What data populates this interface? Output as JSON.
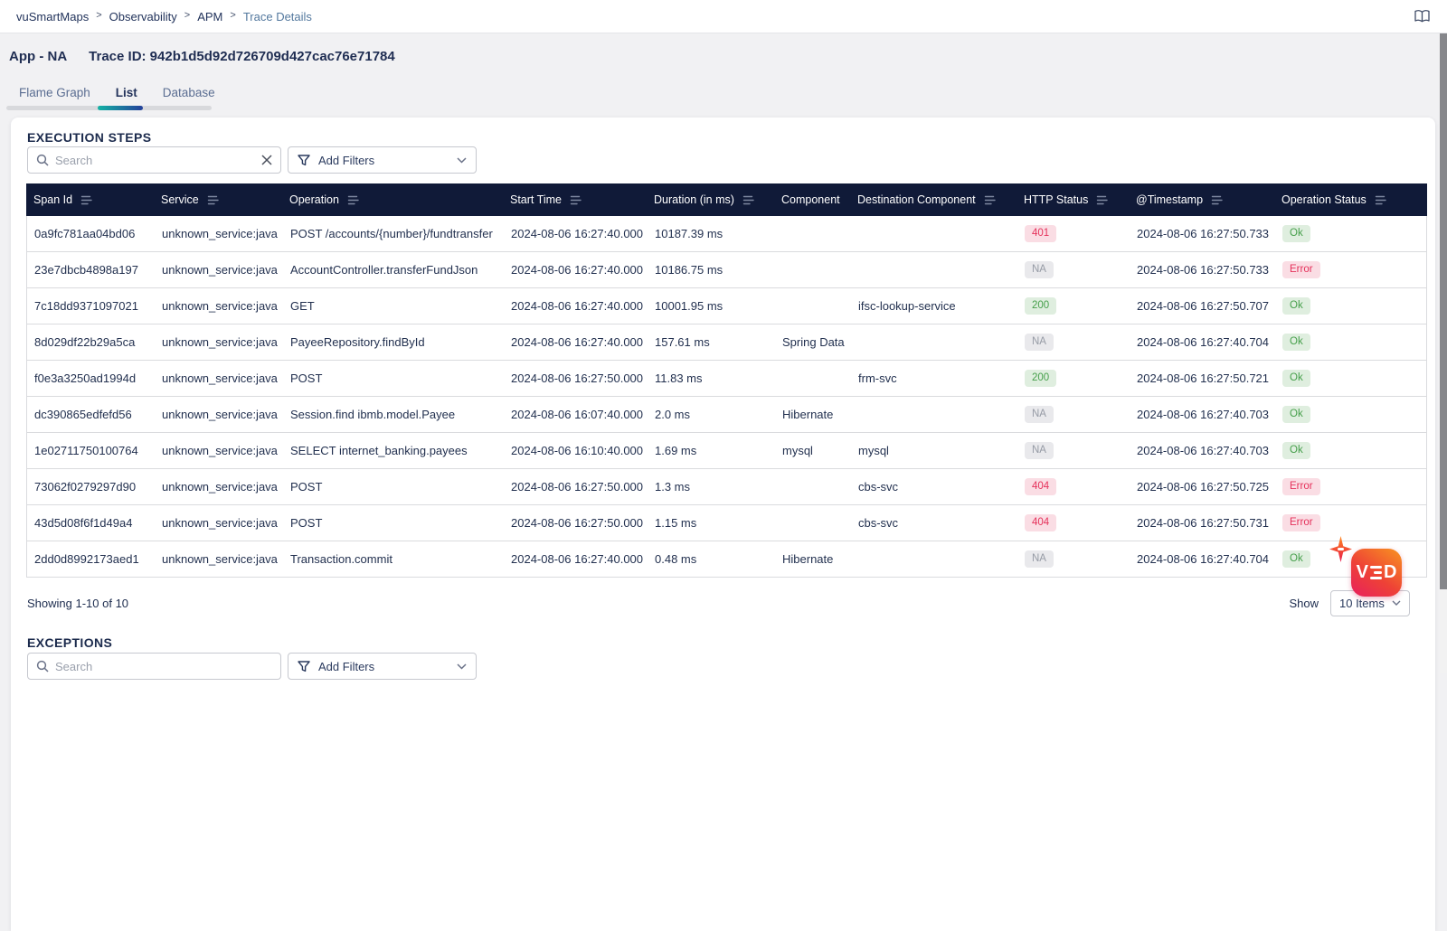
{
  "topbar": {
    "breadcrumb": [
      {
        "label": "vuSmartMaps",
        "current": false
      },
      {
        "label": "Observability",
        "current": false
      },
      {
        "label": "APM",
        "current": false
      },
      {
        "label": "Trace Details",
        "current": true
      }
    ],
    "separator": ">"
  },
  "header": {
    "app_label": "App - NA",
    "trace_id_label": "Trace ID: 942b1d5d92d726709d427cac76e71784"
  },
  "tabs": [
    {
      "label": "Flame Graph",
      "active": false
    },
    {
      "label": "List",
      "active": true
    },
    {
      "label": "Database",
      "active": false
    }
  ],
  "execution_steps": {
    "heading": "EXECUTION STEPS",
    "search_placeholder": "Search",
    "add_filters_label": "Add Filters",
    "table": {
      "columns": [
        {
          "label": "Span Id",
          "filter_icon": true
        },
        {
          "label": "Service",
          "filter_icon": true
        },
        {
          "label": "Operation",
          "filter_icon": true
        },
        {
          "label": "Start Time",
          "filter_icon": true
        },
        {
          "label": "Duration (in ms)",
          "filter_icon": true
        },
        {
          "label": "Component",
          "filter_icon": false
        },
        {
          "label": "Destination Component",
          "filter_icon": true
        },
        {
          "label": "HTTP Status",
          "filter_icon": true
        },
        {
          "label": "@Timestamp",
          "filter_icon": true
        },
        {
          "label": "Operation Status",
          "filter_icon": true
        }
      ],
      "rows": [
        {
          "span_id": "0a9fc781aa04bd06",
          "service": "unknown_service:java",
          "operation": "POST /accounts/{number}/fundtransfer",
          "start_time": "2024-08-06 16:27:40.000",
          "duration": "10187.39 ms",
          "component": "",
          "destination_component": "",
          "http_status": {
            "text": "401",
            "type": "danger"
          },
          "timestamp": "2024-08-06 16:27:50.733",
          "operation_status": {
            "text": "Ok",
            "type": "success"
          }
        },
        {
          "span_id": "23e7dbcb4898a197",
          "service": "unknown_service:java",
          "operation": "AccountController.transferFundJson",
          "start_time": "2024-08-06 16:27:40.000",
          "duration": "10186.75 ms",
          "component": "",
          "destination_component": "",
          "http_status": {
            "text": "NA",
            "type": "neutral"
          },
          "timestamp": "2024-08-06 16:27:50.733",
          "operation_status": {
            "text": "Error",
            "type": "danger"
          }
        },
        {
          "span_id": "7c18dd9371097021",
          "service": "unknown_service:java",
          "operation": "GET",
          "start_time": "2024-08-06 16:27:40.000",
          "duration": "10001.95 ms",
          "component": "",
          "destination_component": "ifsc-lookup-service",
          "http_status": {
            "text": "200",
            "type": "success"
          },
          "timestamp": "2024-08-06 16:27:50.707",
          "operation_status": {
            "text": "Ok",
            "type": "success"
          }
        },
        {
          "span_id": "8d029df22b29a5ca",
          "service": "unknown_service:java",
          "operation": "PayeeRepository.findById",
          "start_time": "2024-08-06 16:27:40.000",
          "duration": "157.61 ms",
          "component": "Spring Data",
          "destination_component": "",
          "http_status": {
            "text": "NA",
            "type": "neutral"
          },
          "timestamp": "2024-08-06 16:27:40.704",
          "operation_status": {
            "text": "Ok",
            "type": "success"
          }
        },
        {
          "span_id": "f0e3a3250ad1994d",
          "service": "unknown_service:java",
          "operation": "POST",
          "start_time": "2024-08-06 16:27:50.000",
          "duration": "11.83 ms",
          "component": "",
          "destination_component": "frm-svc",
          "http_status": {
            "text": "200",
            "type": "success"
          },
          "timestamp": "2024-08-06 16:27:50.721",
          "operation_status": {
            "text": "Ok",
            "type": "success"
          }
        },
        {
          "span_id": "dc390865edfefd56",
          "service": "unknown_service:java",
          "operation": "Session.find ibmb.model.Payee",
          "start_time": "2024-08-06 16:07:40.000",
          "duration": "2.0 ms",
          "component": "Hibernate",
          "destination_component": "",
          "http_status": {
            "text": "NA",
            "type": "neutral"
          },
          "timestamp": "2024-08-06 16:27:40.703",
          "operation_status": {
            "text": "Ok",
            "type": "success"
          }
        },
        {
          "span_id": "1e02711750100764",
          "service": "unknown_service:java",
          "operation": "SELECT internet_banking.payees",
          "start_time": "2024-08-06 16:10:40.000",
          "duration": "1.69 ms",
          "component": "mysql",
          "destination_component": "mysql",
          "http_status": {
            "text": "NA",
            "type": "neutral"
          },
          "timestamp": "2024-08-06 16:27:40.703",
          "operation_status": {
            "text": "Ok",
            "type": "success"
          }
        },
        {
          "span_id": "73062f0279297d90",
          "service": "unknown_service:java",
          "operation": "POST",
          "start_time": "2024-08-06 16:27:50.000",
          "duration": "1.3 ms",
          "component": "",
          "destination_component": "cbs-svc",
          "http_status": {
            "text": "404",
            "type": "danger"
          },
          "timestamp": "2024-08-06 16:27:50.725",
          "operation_status": {
            "text": "Error",
            "type": "danger"
          }
        },
        {
          "span_id": "43d5d08f6f1d49a4",
          "service": "unknown_service:java",
          "operation": "POST",
          "start_time": "2024-08-06 16:27:50.000",
          "duration": "1.15 ms",
          "component": "",
          "destination_component": "cbs-svc",
          "http_status": {
            "text": "404",
            "type": "danger"
          },
          "timestamp": "2024-08-06 16:27:50.731",
          "operation_status": {
            "text": "Error",
            "type": "danger"
          }
        },
        {
          "span_id": "2dd0d8992173aed1",
          "service": "unknown_service:java",
          "operation": "Transaction.commit",
          "start_time": "2024-08-06 16:27:40.000",
          "duration": "0.48 ms",
          "component": "Hibernate",
          "destination_component": "",
          "http_status": {
            "text": "NA",
            "type": "neutral"
          },
          "timestamp": "2024-08-06 16:27:40.704",
          "operation_status": {
            "text": "Ok",
            "type": "success"
          }
        }
      ]
    },
    "footer": {
      "showing": "Showing 1-10 of 10",
      "show_label": "Show",
      "page_size": "10 Items"
    }
  },
  "exceptions": {
    "heading": "EXCEPTIONS",
    "search_placeholder": "Search",
    "add_filters_label": "Add Filters"
  },
  "logo": {
    "v": "V",
    "d": "D"
  },
  "colors": {
    "table_header_bg": "#101a38",
    "status_error_bg": "#fadde4",
    "status_error_text": "#e5325b",
    "status_ok_bg": "#dfeedf",
    "status_ok_text": "#47a04c",
    "status_na_bg": "#e9e9ec",
    "status_na_text": "#969ba5",
    "accent_teal": "#14b3a5",
    "accent_indigo": "#24409a",
    "brand_orange": "#f89420",
    "brand_pink": "#e8205e"
  }
}
